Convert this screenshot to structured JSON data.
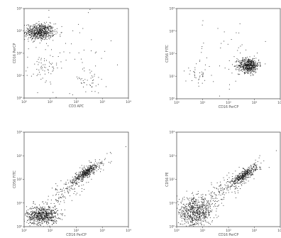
{
  "chart_data": [
    {
      "type": "scatter",
      "scale": "log",
      "xlim": [
        1,
        10000
      ],
      "ylim": [
        1,
        10000
      ],
      "xticks": [
        "10⁰",
        "10¹",
        "10²",
        "10³",
        "10⁴"
      ],
      "yticks": [
        "10⁰",
        "10¹",
        "10²",
        "10³",
        "10⁴"
      ],
      "xlabel": "CD3 APC",
      "ylabel": "CD16 PerCP",
      "clusters": [
        {
          "cx": 4,
          "cy": 900,
          "sx": 0.28,
          "sy": 0.18,
          "n": 650
        },
        {
          "cx": 5,
          "cy": 20,
          "sx": 0.3,
          "sy": 0.35,
          "n": 60
        },
        {
          "cx": 300,
          "cy": 6,
          "sx": 0.35,
          "sy": 0.3,
          "n": 45
        },
        {
          "cx": 60,
          "cy": 100,
          "sx": 0.8,
          "sy": 0.8,
          "n": 40
        }
      ]
    },
    {
      "type": "scatter",
      "scale": "log",
      "xlim": [
        1,
        10000
      ],
      "ylim": [
        1,
        10000
      ],
      "xticks": [
        "10⁰",
        "10¹",
        "10²",
        "10³",
        "10⁴"
      ],
      "yticks": [
        "10⁰",
        "10¹",
        "10²",
        "10³",
        "10⁴"
      ],
      "xlabel": "CD16 PerCP",
      "ylabel": "CD56 FITC",
      "clusters": [
        {
          "cx": 600,
          "cy": 30,
          "sx": 0.2,
          "sy": 0.16,
          "n": 550
        },
        {
          "cx": 7,
          "cy": 12,
          "sx": 0.25,
          "sy": 0.25,
          "n": 40
        },
        {
          "cx": 100,
          "cy": 100,
          "sx": 0.8,
          "sy": 0.8,
          "n": 40
        }
      ]
    },
    {
      "type": "scatter",
      "scale": "log",
      "xlim": [
        1,
        10000
      ],
      "ylim": [
        1,
        10000
      ],
      "xticks": [
        "10⁰",
        "10¹",
        "10²",
        "10³",
        "10⁴"
      ],
      "yticks": [
        "10⁰",
        "10¹",
        "10²",
        "10³",
        "10⁴"
      ],
      "xlabel": "CD16 PerCP",
      "ylabel": "CD56 FITC",
      "clusters": [
        {
          "cx": 5,
          "cy": 3,
          "sx": 0.3,
          "sy": 0.2,
          "n": 650
        },
        {
          "cx": 250,
          "cy": 200,
          "sx": 0.25,
          "sy": 0.2,
          "n": 400,
          "corr": 0.85
        },
        {
          "cx": 60,
          "cy": 50,
          "sx": 0.7,
          "sy": 0.6,
          "n": 200,
          "corr": 0.9
        }
      ]
    },
    {
      "type": "scatter",
      "scale": "log",
      "xlim": [
        1,
        10000
      ],
      "ylim": [
        1,
        10000
      ],
      "xticks": [
        "10⁰",
        "10¹",
        "10²",
        "10³",
        "10⁴"
      ],
      "yticks": [
        "10⁰",
        "10¹",
        "10²",
        "10³",
        "10⁴"
      ],
      "xlabel": "CD16 PerCP",
      "ylabel": "CD56 PE",
      "clusters": [
        {
          "cx": 5,
          "cy": 4,
          "sx": 0.35,
          "sy": 0.3,
          "n": 650
        },
        {
          "cx": 400,
          "cy": 150,
          "sx": 0.25,
          "sy": 0.22,
          "n": 380,
          "corr": 0.85
        },
        {
          "cx": 60,
          "cy": 30,
          "sx": 0.7,
          "sy": 0.6,
          "n": 220,
          "corr": 0.9
        }
      ]
    }
  ]
}
